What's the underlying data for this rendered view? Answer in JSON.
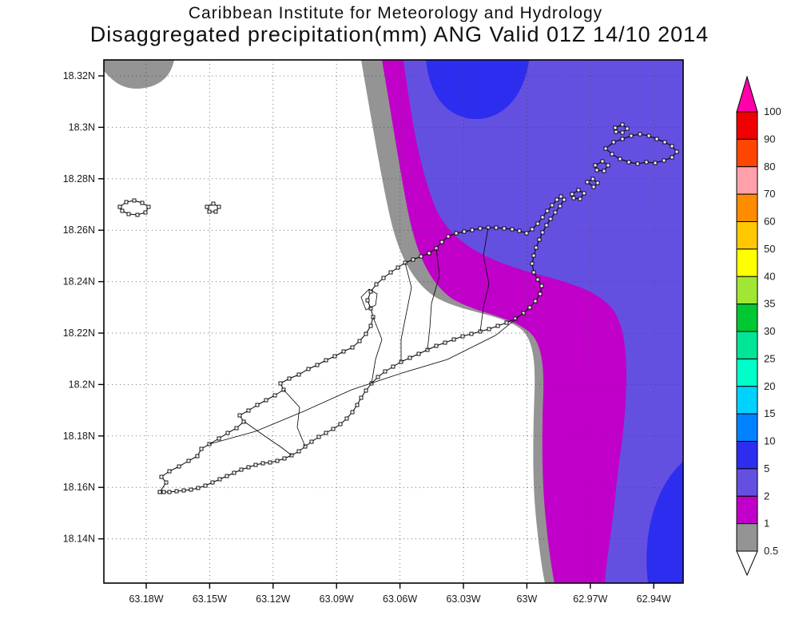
{
  "titles": {
    "line1": "Caribbean Institute for Meteorology and Hydrology",
    "line2": "Disaggregated precipitation(mm) ANG Valid 01Z 14/10 2014"
  },
  "map": {
    "x_tick_labels": [
      "63.18W",
      "63.15W",
      "63.12W",
      "63.09W",
      "63.06W",
      "63.03W",
      "63W",
      "62.97W",
      "62.94W"
    ],
    "y_tick_labels": [
      "18.32N",
      "18.3N",
      "18.28N",
      "18.26N",
      "18.24N",
      "18.22N",
      "18.2N",
      "18.18N",
      "18.16N",
      "18.14N"
    ]
  },
  "colorbar": {
    "tick_labels_top_to_bottom": [
      "100",
      "90",
      "80",
      "70",
      "60",
      "50",
      "40",
      "35",
      "30",
      "25",
      "20",
      "15",
      "10",
      "5",
      "2",
      "1",
      "0.5"
    ],
    "segments_top_to_bottom": [
      {
        "range": ">100",
        "color": "#ff00aa"
      },
      {
        "range": "90-100",
        "color": "#f00000"
      },
      {
        "range": "80-90",
        "color": "#ff4600"
      },
      {
        "range": "70-80",
        "color": "#ffa0aa"
      },
      {
        "range": "60-70",
        "color": "#ff8c00"
      },
      {
        "range": "50-60",
        "color": "#ffc800"
      },
      {
        "range": "40-50",
        "color": "#ffff00"
      },
      {
        "range": "35-40",
        "color": "#a0e632"
      },
      {
        "range": "30-35",
        "color": "#00c832"
      },
      {
        "range": "25-30",
        "color": "#00e696"
      },
      {
        "range": "20-25",
        "color": "#00ffc8"
      },
      {
        "range": "15-20",
        "color": "#00d2ff"
      },
      {
        "range": "10-15",
        "color": "#0082ff"
      },
      {
        "range": "5-10",
        "color": "#2d2df0"
      },
      {
        "range": "2-5",
        "color": "#6450e0"
      },
      {
        "range": "1-2",
        "color": "#c000c8"
      },
      {
        "range": "0.5-1",
        "color": "#949494"
      },
      {
        "range": "<0.5",
        "color": "#ffffff"
      }
    ]
  },
  "chart_data": {
    "type": "heatmap",
    "title": "Disaggregated precipitation(mm) ANG Valid 01Z 14/10 2014",
    "x_ticks": [
      "63.18W",
      "63.15W",
      "63.12W",
      "63.09W",
      "63.06W",
      "63.03W",
      "63W",
      "62.97W",
      "62.94W"
    ],
    "y_ticks": [
      "18.32N",
      "18.3N",
      "18.28N",
      "18.26N",
      "18.24N",
      "18.22N",
      "18.2N",
      "18.18N",
      "18.16N",
      "18.14N"
    ],
    "contour_levels_mm": [
      0.5,
      1,
      2,
      5,
      10,
      15,
      20,
      25,
      30,
      35,
      40,
      50,
      60,
      70,
      80,
      90,
      100
    ],
    "legend_position": "right",
    "grid": "dotted",
    "field_regions": [
      {
        "range_mm": "<0.5",
        "location": "western half of domain covering most of Anguilla"
      },
      {
        "range_mm": "0.5-1",
        "location": "S-shaped band through center of domain and small patch at top-left corner"
      },
      {
        "range_mm": "1-2",
        "location": "band east of the 0.5-1 band, widest mid-domain, reaching bottom edge"
      },
      {
        "range_mm": "2-5",
        "location": "eastern portion of domain"
      },
      {
        "range_mm": "5-10",
        "location": "lobe at top-center and lobe at bottom-right corner"
      }
    ]
  }
}
